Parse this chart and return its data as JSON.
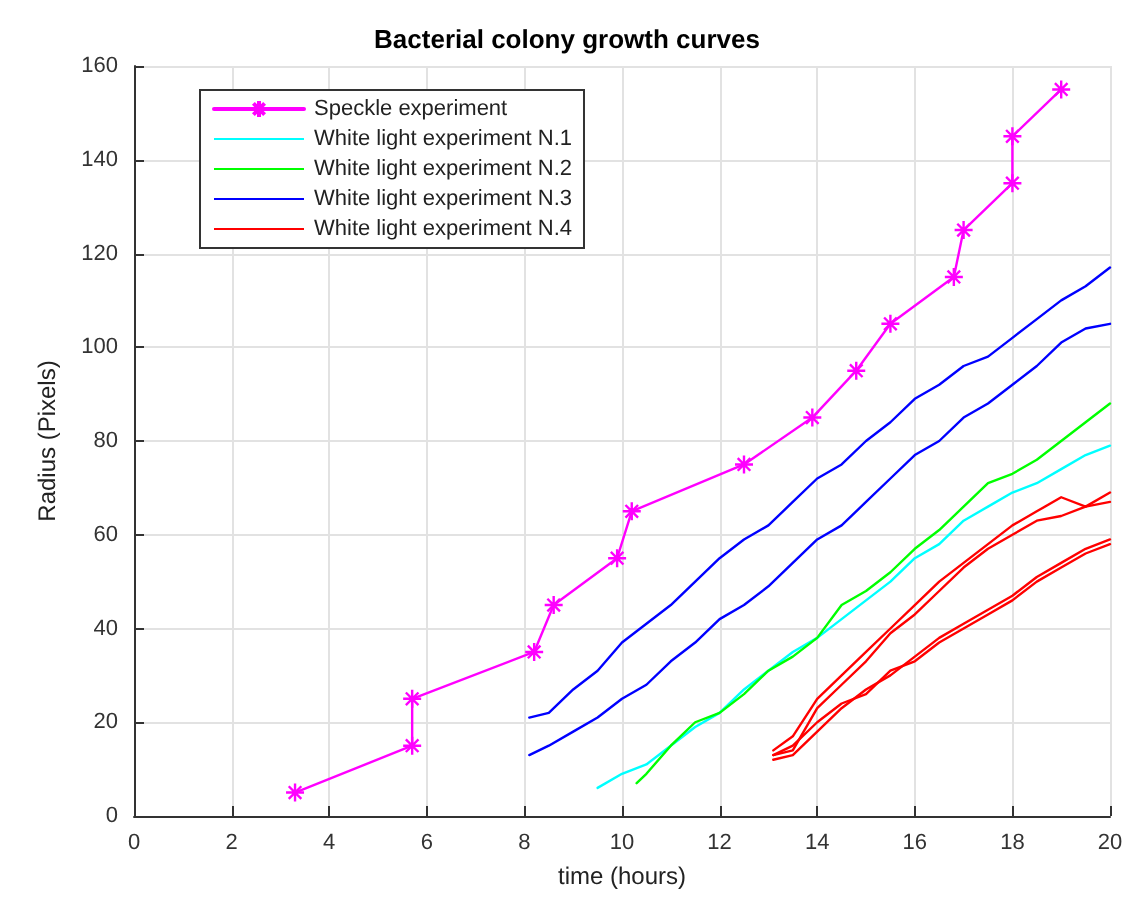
{
  "chart_data": {
    "type": "line",
    "title": "Bacterial colony growth curves",
    "xlabel": "time (hours)",
    "ylabel": "Radius (Pixels)",
    "xlim": [
      0,
      20
    ],
    "xticks": [
      0,
      2,
      4,
      6,
      8,
      10,
      12,
      14,
      16,
      18,
      20
    ],
    "ylim": [
      0,
      160
    ],
    "yticks": [
      0,
      20,
      40,
      60,
      80,
      100,
      120,
      140,
      160
    ],
    "grid": true,
    "legend": "top left",
    "marker": "none",
    "line_style": "solid",
    "series": [
      {
        "name": "Speckle experiment",
        "color": "#ff00ff",
        "marker": "cross",
        "x": [
          3.3,
          5.7,
          5.7,
          8.2,
          8.6,
          9.9,
          10.2,
          12.5,
          13.9,
          14.8,
          15.5,
          16.8,
          17,
          18,
          18,
          19
        ],
        "values": [
          5,
          15,
          25,
          35,
          45,
          55,
          65,
          75,
          85,
          95,
          105,
          115,
          125,
          135,
          145,
          155
        ]
      },
      {
        "name": "White light experiment N.1",
        "color": "#00ffff",
        "x": [
          9.5,
          10,
          10.5,
          11,
          11.5,
          12,
          12.5,
          13,
          13.5,
          14,
          14.5,
          15,
          15.5,
          16,
          16.5,
          17,
          17.5,
          18,
          18.5,
          19,
          19.5,
          20
        ],
        "values": [
          6,
          9,
          11,
          15,
          19,
          22,
          27,
          31,
          35,
          38,
          42,
          46,
          50,
          55,
          58,
          63,
          66,
          69,
          71,
          74,
          77,
          79
        ]
      },
      {
        "name": "White light experiment N.2",
        "color": "#00ff00",
        "x": [
          10.3,
          10.5,
          11,
          11.5,
          12,
          12.5,
          13,
          13.5,
          14,
          14.5,
          15,
          15.5,
          16,
          16.5,
          17,
          17.5,
          18,
          18.5,
          19,
          19.5,
          20
        ],
        "values": [
          7,
          9,
          15,
          20,
          22,
          26,
          31,
          34,
          38,
          45,
          48,
          52,
          57,
          61,
          66,
          71,
          73,
          76,
          80,
          84,
          88
        ]
      },
      {
        "name": "White light experiment N.3",
        "color": "#0000ff",
        "x": [
          8.1,
          8.5,
          9,
          9.5,
          10,
          10.5,
          11,
          11.5,
          12,
          12.5,
          13,
          13.5,
          14,
          14.5,
          15,
          15.5,
          16,
          16.5,
          17,
          17.5,
          18,
          18.5,
          19,
          19.5,
          20
        ],
        "values": [
          21,
          22,
          27,
          31,
          37,
          41,
          45,
          50,
          55,
          59,
          62,
          67,
          72,
          75,
          80,
          84,
          89,
          92,
          96,
          98,
          102,
          106,
          110,
          113,
          117
        ]
      },
      {
        "color": "#0000ff",
        "x": [
          8.1,
          8.5,
          9,
          9.5,
          10,
          10.5,
          11,
          11.5,
          12,
          12.5,
          13,
          13.5,
          14,
          14.5,
          15,
          15.5,
          16,
          16.5,
          17,
          17.5,
          18,
          18.5,
          19,
          19.5,
          20
        ],
        "values": [
          13,
          15,
          18,
          21,
          25,
          28,
          33,
          37,
          42,
          45,
          49,
          54,
          59,
          62,
          67,
          72,
          77,
          80,
          85,
          88,
          92,
          96,
          101,
          104,
          105
        ]
      },
      {
        "name": "White light experiment N.4",
        "color": "#ff0000",
        "x": [
          13.1,
          13.5,
          14,
          14.5,
          15,
          15.5,
          16,
          16.5,
          17,
          17.5,
          18,
          18.5,
          19,
          19.5,
          20
        ],
        "values": [
          14,
          17,
          25,
          30,
          35,
          40,
          45,
          50,
          54,
          58,
          62,
          65,
          68,
          66,
          69
        ]
      },
      {
        "color": "#ff0000",
        "x": [
          13.1,
          13.5,
          14,
          14.5,
          15,
          15.5,
          16,
          16.5,
          17,
          17.5,
          18,
          18.5,
          19,
          19.5,
          20
        ],
        "values": [
          13,
          14,
          23,
          28,
          33,
          39,
          43,
          48,
          53,
          57,
          60,
          63,
          64,
          66,
          67
        ]
      },
      {
        "color": "#ff0000",
        "x": [
          13.1,
          13.5,
          14,
          14.5,
          15,
          15.5,
          16,
          16.5,
          17,
          17.5,
          18,
          18.5,
          19,
          19.5,
          20
        ],
        "values": [
          12,
          13,
          18,
          23,
          27,
          30,
          34,
          38,
          41,
          44,
          47,
          51,
          54,
          57,
          59
        ]
      },
      {
        "color": "#ff0000",
        "x": [
          13.1,
          13.5,
          14,
          14.5,
          15,
          15.5,
          16,
          16.5,
          17,
          17.5,
          18,
          18.5,
          19,
          19.5,
          20
        ],
        "values": [
          13,
          15,
          20,
          24,
          26,
          31,
          33,
          37,
          40,
          43,
          46,
          50,
          53,
          56,
          58
        ]
      }
    ]
  }
}
